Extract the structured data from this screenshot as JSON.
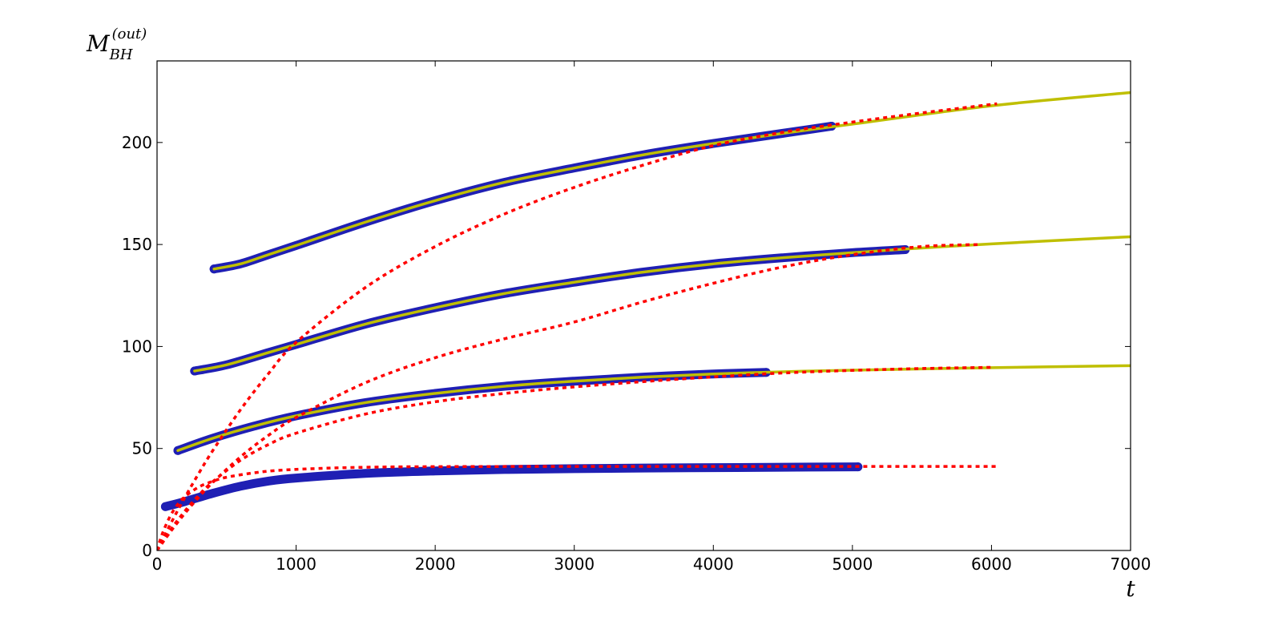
{
  "chart_data": {
    "type": "line",
    "xlabel": "t",
    "ylabel": {
      "base": "M",
      "sub": "BH",
      "sup": "(out)"
    },
    "xlim": [
      0,
      7000
    ],
    "ylim": [
      0,
      240
    ],
    "xticks": [
      0,
      1000,
      2000,
      3000,
      4000,
      5000,
      6000,
      7000
    ],
    "yticks": [
      0,
      50,
      100,
      150,
      200
    ],
    "grid": false,
    "legend": "none",
    "colors": {
      "markers": "#1f1fb4",
      "solid": "#bfbf00",
      "dashed": "#ff0000"
    },
    "series": [
      {
        "marker_points": [
          [
            60,
            21.5
          ],
          [
            200,
            24
          ],
          [
            400,
            28
          ],
          [
            600,
            31.5
          ],
          [
            800,
            34
          ],
          [
            1000,
            35.5
          ],
          [
            1500,
            37.8
          ],
          [
            2000,
            39
          ],
          [
            2500,
            39.7
          ],
          [
            3000,
            40.1
          ],
          [
            3500,
            40.4
          ],
          [
            4000,
            40.6
          ],
          [
            4500,
            40.8
          ],
          [
            5040,
            41
          ]
        ],
        "solid_line": [],
        "fit_line": [
          [
            0,
            0
          ],
          [
            20,
            4.6
          ],
          [
            50,
            10.3
          ],
          [
            100,
            17.5
          ],
          [
            150,
            22.7
          ],
          [
            200,
            26.4
          ],
          [
            300,
            31.1
          ],
          [
            400,
            33.9
          ],
          [
            500,
            35.9
          ],
          [
            700,
            38.1
          ],
          [
            900,
            39.4
          ],
          [
            1200,
            40.3
          ],
          [
            1500,
            40.8
          ],
          [
            2000,
            41.1
          ],
          [
            3000,
            41.2
          ],
          [
            4000,
            41.2
          ],
          [
            5000,
            41.2
          ],
          [
            6040,
            41.2
          ]
        ]
      },
      {
        "marker_points": [
          [
            150,
            49
          ],
          [
            400,
            55
          ],
          [
            700,
            61
          ],
          [
            1000,
            66
          ],
          [
            1500,
            72.5
          ],
          [
            2000,
            77
          ],
          [
            2500,
            80.5
          ],
          [
            3000,
            83
          ],
          [
            3500,
            85
          ],
          [
            4000,
            86.5
          ],
          [
            4380,
            87.3
          ]
        ],
        "solid_line": [
          [
            150,
            49
          ],
          [
            400,
            55
          ],
          [
            700,
            61
          ],
          [
            1000,
            66
          ],
          [
            1500,
            72.5
          ],
          [
            2000,
            77
          ],
          [
            2500,
            80.5
          ],
          [
            3000,
            83
          ],
          [
            3500,
            85
          ],
          [
            4000,
            86.5
          ],
          [
            4500,
            87.6
          ],
          [
            5000,
            88.4
          ],
          [
            6000,
            89.6
          ],
          [
            7000,
            90.6
          ]
        ],
        "fit_line": [
          [
            0,
            0
          ],
          [
            100,
            10.4
          ],
          [
            200,
            19.3
          ],
          [
            300,
            27.1
          ],
          [
            400,
            33.7
          ],
          [
            600,
            44.2
          ],
          [
            800,
            51.9
          ],
          [
            1000,
            57.5
          ],
          [
            1500,
            66.9
          ],
          [
            2000,
            72.9
          ],
          [
            2500,
            77
          ],
          [
            3000,
            80.2
          ],
          [
            3500,
            82.8
          ],
          [
            4000,
            85.1
          ],
          [
            4500,
            87
          ],
          [
            5000,
            88.3
          ],
          [
            5500,
            89.2
          ],
          [
            6020,
            89.8
          ]
        ]
      },
      {
        "marker_points": [
          [
            270,
            88
          ],
          [
            500,
            91
          ],
          [
            800,
            97
          ],
          [
            1000,
            101
          ],
          [
            1500,
            111
          ],
          [
            2000,
            119
          ],
          [
            2500,
            126
          ],
          [
            3000,
            131.5
          ],
          [
            3500,
            136.5
          ],
          [
            4000,
            140.5
          ],
          [
            4500,
            143.5
          ],
          [
            5000,
            146
          ],
          [
            5380,
            147.5
          ]
        ],
        "solid_line": [
          [
            270,
            88
          ],
          [
            500,
            91
          ],
          [
            800,
            97
          ],
          [
            1000,
            101
          ],
          [
            1500,
            111
          ],
          [
            2000,
            119
          ],
          [
            2500,
            126
          ],
          [
            3000,
            131.5
          ],
          [
            3500,
            136.5
          ],
          [
            4000,
            140.5
          ],
          [
            4500,
            143.5
          ],
          [
            5000,
            146
          ],
          [
            5500,
            148.3
          ],
          [
            6000,
            150.3
          ],
          [
            7000,
            153.8
          ]
        ],
        "fit_line": [
          [
            0,
            0
          ],
          [
            100,
            9.5
          ],
          [
            200,
            18.2
          ],
          [
            300,
            26.1
          ],
          [
            400,
            33.3
          ],
          [
            600,
            45.9
          ],
          [
            800,
            56.4
          ],
          [
            1000,
            65.2
          ],
          [
            1500,
            82.3
          ],
          [
            2000,
            94.5
          ],
          [
            2500,
            103.8
          ],
          [
            3000,
            112
          ],
          [
            3500,
            122
          ],
          [
            4000,
            131
          ],
          [
            4500,
            139
          ],
          [
            5000,
            145
          ],
          [
            5500,
            149
          ],
          [
            5920,
            150
          ]
        ]
      },
      {
        "marker_points": [
          [
            410,
            138
          ],
          [
            600,
            140.5
          ],
          [
            800,
            145
          ],
          [
            1000,
            149.5
          ],
          [
            1500,
            161
          ],
          [
            2000,
            171.5
          ],
          [
            2500,
            180.5
          ],
          [
            3000,
            187.5
          ],
          [
            3500,
            194
          ],
          [
            4000,
            199.5
          ],
          [
            4500,
            204.5
          ],
          [
            4850,
            208
          ]
        ],
        "solid_line": [
          [
            410,
            138
          ],
          [
            600,
            140.5
          ],
          [
            800,
            145
          ],
          [
            1000,
            149.5
          ],
          [
            1500,
            161
          ],
          [
            2000,
            171.5
          ],
          [
            2500,
            180.5
          ],
          [
            3000,
            187.5
          ],
          [
            3500,
            194
          ],
          [
            4000,
            199.5
          ],
          [
            4500,
            204.5
          ],
          [
            5000,
            209
          ],
          [
            6000,
            218
          ],
          [
            7000,
            224.5
          ]
        ],
        "fit_line": [
          [
            0,
            0
          ],
          [
            100,
            13.4
          ],
          [
            200,
            26
          ],
          [
            300,
            37.8
          ],
          [
            400,
            48.9
          ],
          [
            600,
            69
          ],
          [
            800,
            86.6
          ],
          [
            1000,
            102
          ],
          [
            1500,
            129
          ],
          [
            2000,
            149
          ],
          [
            2500,
            165
          ],
          [
            3000,
            178
          ],
          [
            3500,
            189
          ],
          [
            4000,
            198.5
          ],
          [
            4500,
            205
          ],
          [
            5000,
            210
          ],
          [
            5500,
            214.5
          ],
          [
            6040,
            219
          ]
        ]
      }
    ]
  }
}
